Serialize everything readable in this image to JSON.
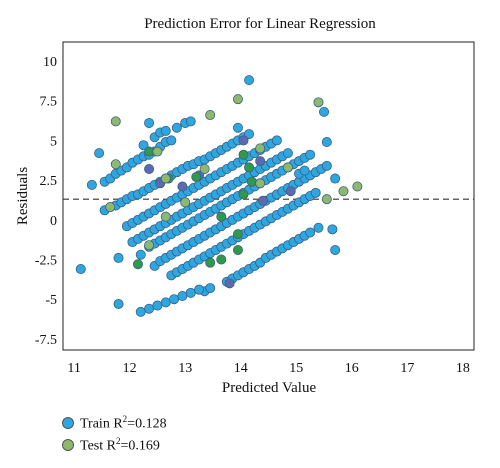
{
  "chart_data": {
    "type": "scatter",
    "title": "Prediction Error for Linear Regression",
    "xlabel": "Predicted Value",
    "ylabel": "Residuals",
    "xlim": [
      10.8,
      18.2
    ],
    "ylim": [
      -8.2,
      11.2
    ],
    "xticks": [
      "11",
      "12",
      "13",
      "14",
      "15",
      "16",
      "17",
      "18"
    ],
    "xtick_values": [
      11,
      12,
      13,
      14,
      15,
      16,
      17,
      18
    ],
    "yticks": [
      "10",
      "7.5",
      "5",
      "2.5",
      "0",
      "-2.5",
      "-5",
      "-7.5"
    ],
    "ytick_values": [
      10,
      7.5,
      5,
      2.5,
      0,
      -2.5,
      -5,
      -7.5
    ],
    "reference_line_y": 1.3,
    "grid": false,
    "legend_position": "bottom-left",
    "series": [
      {
        "name": "Train",
        "color": "#2ea7e0",
        "points": [
          [
            11.12,
            -3.1
          ],
          [
            11.32,
            2.2
          ],
          [
            11.45,
            4.2
          ],
          [
            11.55,
            2.4
          ],
          [
            11.65,
            2.6
          ],
          [
            11.75,
            2.9
          ],
          [
            11.85,
            3.1
          ],
          [
            11.95,
            3.3
          ],
          [
            12.05,
            3.6
          ],
          [
            12.15,
            3.8
          ],
          [
            12.25,
            4.0
          ],
          [
            12.35,
            4.1
          ],
          [
            12.45,
            4.3
          ],
          [
            12.55,
            4.6
          ],
          [
            12.65,
            4.9
          ],
          [
            12.75,
            5.0
          ],
          [
            11.55,
            0.6
          ],
          [
            11.65,
            0.8
          ],
          [
            11.75,
            0.9
          ],
          [
            11.85,
            1.1
          ],
          [
            11.95,
            1.3
          ],
          [
            12.05,
            1.5
          ],
          [
            12.15,
            1.6
          ],
          [
            12.25,
            1.8
          ],
          [
            12.35,
            2.0
          ],
          [
            12.45,
            2.2
          ],
          [
            12.55,
            2.4
          ],
          [
            12.65,
            2.6
          ],
          [
            12.75,
            2.8
          ],
          [
            12.85,
            3.0
          ],
          [
            12.95,
            3.2
          ],
          [
            13.05,
            3.4
          ],
          [
            13.15,
            3.5
          ],
          [
            13.25,
            3.7
          ],
          [
            13.35,
            3.8
          ],
          [
            13.45,
            4.0
          ],
          [
            13.55,
            4.2
          ],
          [
            13.65,
            4.4
          ],
          [
            13.75,
            4.6
          ],
          [
            13.85,
            4.8
          ],
          [
            13.95,
            5.0
          ],
          [
            14.05,
            5.2
          ],
          [
            14.15,
            5.4
          ],
          [
            11.95,
            -0.4
          ],
          [
            12.05,
            -0.2
          ],
          [
            12.15,
            0.0
          ],
          [
            12.25,
            0.2
          ],
          [
            12.35,
            0.4
          ],
          [
            12.45,
            0.6
          ],
          [
            12.55,
            0.8
          ],
          [
            12.65,
            1.0
          ],
          [
            12.75,
            1.2
          ],
          [
            12.85,
            1.4
          ],
          [
            12.95,
            1.6
          ],
          [
            13.05,
            1.8
          ],
          [
            13.15,
            2.0
          ],
          [
            13.25,
            2.2
          ],
          [
            13.35,
            2.4
          ],
          [
            13.45,
            2.6
          ],
          [
            13.55,
            2.8
          ],
          [
            13.65,
            3.0
          ],
          [
            13.75,
            3.2
          ],
          [
            13.85,
            3.4
          ],
          [
            13.95,
            3.6
          ],
          [
            14.05,
            3.8
          ],
          [
            14.15,
            4.0
          ],
          [
            14.25,
            4.2
          ],
          [
            14.35,
            4.4
          ],
          [
            14.45,
            4.6
          ],
          [
            14.55,
            4.8
          ],
          [
            14.65,
            5.0
          ],
          [
            12.05,
            -1.4
          ],
          [
            12.15,
            -1.2
          ],
          [
            12.25,
            -1.0
          ],
          [
            12.35,
            -0.8
          ],
          [
            12.45,
            -0.6
          ],
          [
            12.55,
            -0.4
          ],
          [
            12.65,
            -0.2
          ],
          [
            12.75,
            0.0
          ],
          [
            12.85,
            0.2
          ],
          [
            12.95,
            0.4
          ],
          [
            13.05,
            0.6
          ],
          [
            13.15,
            0.8
          ],
          [
            13.25,
            1.0
          ],
          [
            13.35,
            1.2
          ],
          [
            13.45,
            1.4
          ],
          [
            13.55,
            1.6
          ],
          [
            13.65,
            1.8
          ],
          [
            13.75,
            2.0
          ],
          [
            13.85,
            2.2
          ],
          [
            13.95,
            2.4
          ],
          [
            14.05,
            2.6
          ],
          [
            14.15,
            2.8
          ],
          [
            14.25,
            3.0
          ],
          [
            14.35,
            3.2
          ],
          [
            14.45,
            3.4
          ],
          [
            14.55,
            3.6
          ],
          [
            14.65,
            3.8
          ],
          [
            14.75,
            4.0
          ],
          [
            14.85,
            4.2
          ],
          [
            11.8,
            -2.4
          ],
          [
            12.2,
            -2.2
          ],
          [
            12.35,
            -1.7
          ],
          [
            12.45,
            -1.5
          ],
          [
            12.55,
            -1.3
          ],
          [
            12.65,
            -1.1
          ],
          [
            12.75,
            -0.9
          ],
          [
            12.85,
            -0.7
          ],
          [
            12.95,
            -0.5
          ],
          [
            13.05,
            -0.3
          ],
          [
            13.15,
            -0.1
          ],
          [
            13.25,
            0.1
          ],
          [
            13.35,
            0.3
          ],
          [
            13.45,
            0.5
          ],
          [
            13.55,
            0.7
          ],
          [
            13.65,
            0.9
          ],
          [
            13.75,
            1.1
          ],
          [
            13.85,
            1.3
          ],
          [
            13.95,
            1.5
          ],
          [
            14.05,
            1.7
          ],
          [
            14.15,
            1.9
          ],
          [
            14.25,
            2.1
          ],
          [
            14.35,
            2.3
          ],
          [
            14.45,
            2.5
          ],
          [
            14.55,
            2.7
          ],
          [
            14.65,
            2.9
          ],
          [
            14.75,
            3.1
          ],
          [
            14.85,
            3.3
          ],
          [
            14.95,
            3.5
          ],
          [
            15.05,
            3.7
          ],
          [
            15.15,
            3.9
          ],
          [
            15.25,
            4.1
          ],
          [
            12.45,
            -2.9
          ],
          [
            12.55,
            -2.6
          ],
          [
            12.65,
            -2.4
          ],
          [
            12.75,
            -2.2
          ],
          [
            12.85,
            -2.0
          ],
          [
            12.95,
            -1.8
          ],
          [
            13.05,
            -1.6
          ],
          [
            13.15,
            -1.4
          ],
          [
            13.25,
            -1.2
          ],
          [
            13.35,
            -1.0
          ],
          [
            13.45,
            -0.8
          ],
          [
            13.55,
            -0.6
          ],
          [
            13.65,
            -0.4
          ],
          [
            13.75,
            -0.2
          ],
          [
            13.85,
            0.0
          ],
          [
            13.95,
            0.2
          ],
          [
            14.05,
            0.4
          ],
          [
            14.15,
            0.6
          ],
          [
            14.25,
            0.8
          ],
          [
            14.35,
            1.0
          ],
          [
            14.45,
            1.2
          ],
          [
            14.55,
            1.4
          ],
          [
            14.65,
            1.6
          ],
          [
            14.75,
            1.8
          ],
          [
            14.85,
            2.0
          ],
          [
            14.95,
            2.2
          ],
          [
            15.05,
            2.4
          ],
          [
            15.15,
            2.6
          ],
          [
            15.25,
            2.8
          ],
          [
            15.35,
            3.0
          ],
          [
            15.45,
            3.2
          ],
          [
            15.55,
            3.4
          ],
          [
            12.75,
            -3.5
          ],
          [
            12.85,
            -3.3
          ],
          [
            12.95,
            -3.1
          ],
          [
            13.05,
            -2.9
          ],
          [
            13.15,
            -2.7
          ],
          [
            13.25,
            -2.5
          ],
          [
            13.35,
            -2.3
          ],
          [
            13.45,
            -2.1
          ],
          [
            13.55,
            -1.9
          ],
          [
            13.65,
            -1.7
          ],
          [
            13.75,
            -1.5
          ],
          [
            13.85,
            -1.3
          ],
          [
            13.95,
            -1.1
          ],
          [
            14.05,
            -0.9
          ],
          [
            14.15,
            -0.7
          ],
          [
            14.25,
            -0.5
          ],
          [
            14.35,
            -0.3
          ],
          [
            14.45,
            -0.1
          ],
          [
            14.55,
            0.1
          ],
          [
            14.65,
            0.3
          ],
          [
            14.75,
            0.5
          ],
          [
            14.85,
            0.7
          ],
          [
            14.95,
            0.9
          ],
          [
            15.05,
            1.1
          ],
          [
            15.15,
            1.3
          ],
          [
            15.25,
            1.5
          ],
          [
            15.35,
            1.7
          ],
          [
            13.35,
            -4.5
          ],
          [
            13.45,
            -4.3
          ],
          [
            13.75,
            -3.9
          ],
          [
            13.85,
            -3.7
          ],
          [
            13.95,
            -3.5
          ],
          [
            14.05,
            -3.3
          ],
          [
            14.15,
            -3.1
          ],
          [
            14.25,
            -2.9
          ],
          [
            14.35,
            -2.7
          ],
          [
            14.45,
            -2.4
          ],
          [
            14.55,
            -2.2
          ],
          [
            14.65,
            -2.0
          ],
          [
            14.75,
            -1.8
          ],
          [
            14.85,
            -1.6
          ],
          [
            14.95,
            -1.4
          ],
          [
            15.05,
            -1.2
          ],
          [
            15.15,
            -1.0
          ],
          [
            15.25,
            -0.8
          ],
          [
            15.4,
            -0.5
          ],
          [
            15.65,
            -0.6
          ],
          [
            12.2,
            -5.8
          ],
          [
            12.35,
            -5.6
          ],
          [
            12.5,
            -5.4
          ],
          [
            12.65,
            -5.2
          ],
          [
            12.8,
            -5.0
          ],
          [
            12.95,
            -4.8
          ],
          [
            13.1,
            -4.6
          ],
          [
            13.25,
            -4.4
          ],
          [
            11.8,
            -5.3
          ],
          [
            15.7,
            -1.9
          ],
          [
            15.55,
            4.9
          ],
          [
            15.5,
            6.8
          ],
          [
            14.15,
            8.8
          ],
          [
            13.95,
            5.8
          ],
          [
            13.0,
            6.1
          ],
          [
            13.1,
            6.2
          ],
          [
            12.35,
            6.1
          ],
          [
            12.25,
            4.7
          ],
          [
            12.45,
            5.2
          ],
          [
            12.55,
            5.5
          ],
          [
            12.65,
            5.6
          ],
          [
            12.85,
            5.8
          ],
          [
            15.7,
            2.6
          ],
          [
            15.05,
            2.9
          ],
          [
            15.15,
            3.1
          ]
        ]
      },
      {
        "name": "Test",
        "color": "#8db96e",
        "points": [
          [
            11.75,
            6.2
          ],
          [
            13.45,
            6.6
          ],
          [
            13.95,
            7.6
          ],
          [
            15.4,
            7.4
          ],
          [
            11.75,
            3.5
          ],
          [
            12.5,
            4.3
          ],
          [
            12.65,
            2.6
          ],
          [
            14.35,
            4.5
          ],
          [
            13.0,
            1.1
          ],
          [
            14.35,
            2.3
          ],
          [
            15.55,
            1.3
          ],
          [
            15.85,
            1.8
          ],
          [
            16.1,
            2.1
          ],
          [
            12.65,
            0.2
          ],
          [
            12.35,
            -1.6
          ],
          [
            14.85,
            3.3
          ],
          [
            11.65,
            0.8
          ],
          [
            13.35,
            3.2
          ]
        ]
      }
    ]
  },
  "accent_points": {
    "dark_green": [
      [
        12.15,
        -2.8
      ],
      [
        12.7,
        2.6
      ],
      [
        12.35,
        4.3
      ],
      [
        13.2,
        2.7
      ],
      [
        14.05,
        1.6
      ],
      [
        14.2,
        2.4
      ],
      [
        13.45,
        -2.7
      ],
      [
        13.95,
        -1.9
      ],
      [
        13.95,
        -0.9
      ],
      [
        13.65,
        0.2
      ],
      [
        14.05,
        4.1
      ],
      [
        13.65,
        -2.5
      ],
      [
        14.15,
        3.3
      ]
    ],
    "purple": [
      [
        12.55,
        2.3
      ],
      [
        12.35,
        3.2
      ],
      [
        12.95,
        2.1
      ],
      [
        13.25,
        2.8
      ],
      [
        14.05,
        5.0
      ],
      [
        14.4,
        1.2
      ],
      [
        13.8,
        -4.0
      ],
      [
        14.9,
        1.8
      ],
      [
        14.35,
        3.7
      ]
    ],
    "dark_green_color": "#2f9a4a",
    "purple_color": "#5e6ab0"
  },
  "legend": {
    "train_label": "Train R",
    "train_value": "=0.128",
    "test_label": "Test R",
    "test_value": "=0.169",
    "superscript": "2"
  }
}
